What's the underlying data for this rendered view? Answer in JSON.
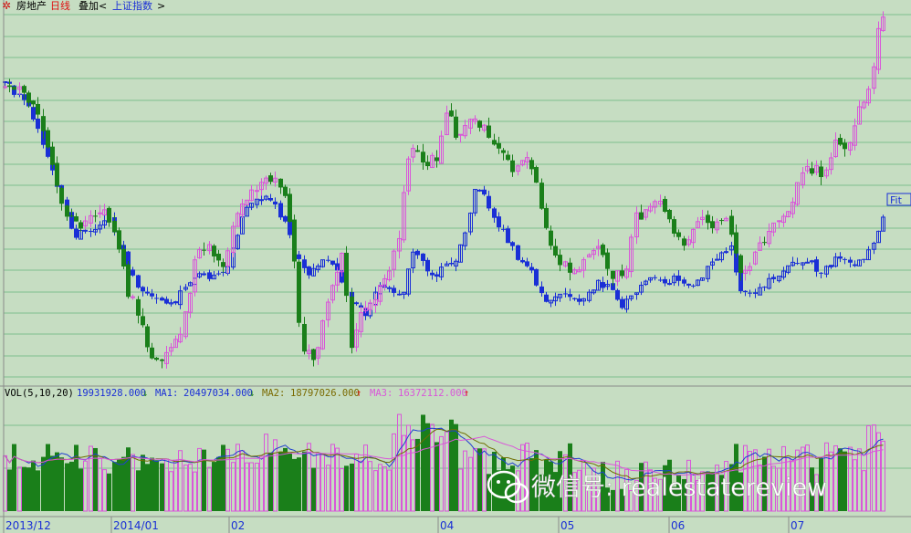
{
  "header": {
    "icon": "gear-icon",
    "name": "房地产",
    "period": "日线",
    "overlay_label": "叠加<",
    "overlay_index": "上证指数",
    "overlay_suffix": ">"
  },
  "index_tag": "Fit",
  "volume_header": {
    "label": "VOL(5,10,20)",
    "vol_value": "19931928.000",
    "vol_arrow": "↓",
    "ma1_label": "MA1:",
    "ma1_value": "20497034.000",
    "ma1_arrow": "↓",
    "ma2_label": "MA2:",
    "ma2_value": "18797026.000",
    "ma2_arrow": "↑",
    "ma3_label": "MA3:",
    "ma3_value": "16372112.000",
    "ma3_arrow": "↑"
  },
  "watermark": "微信号: realestatereview",
  "date_axis": [
    "2013/12",
    "2014/01",
    "02",
    "04",
    "05",
    "06",
    "07"
  ],
  "colors": {
    "background": "#c6ddc2",
    "up": "#d957d9",
    "down": "#1a7f1a",
    "index": "#1a2fd6",
    "ma1": "#1f3fd0",
    "ma2": "#6e6e00",
    "ma3": "#d957d9",
    "grid": "#7fbf8f"
  },
  "chart_data": {
    "type": "candlestick",
    "price_series_name": "房地产",
    "overlay_series_name": "上证指数",
    "volume_ma_windows": [
      5,
      10,
      20
    ]
  }
}
